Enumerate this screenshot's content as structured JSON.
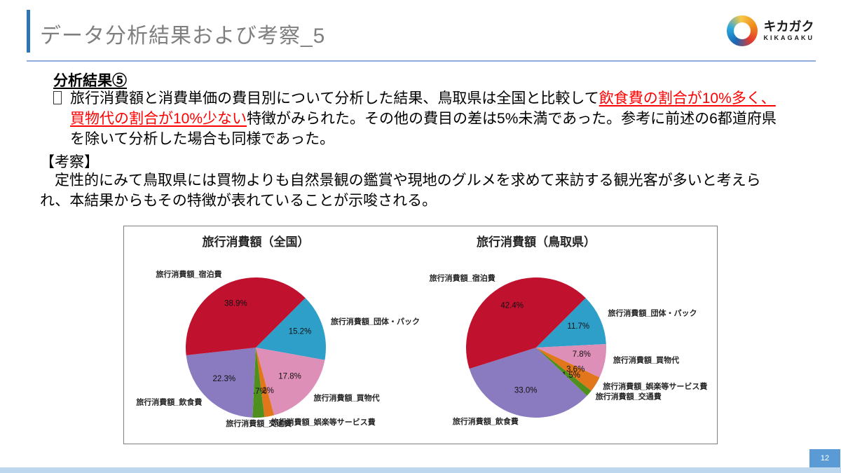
{
  "header": {
    "title": "データ分析結果および考察_5",
    "logo": {
      "brand": "キカガク",
      "sub": "KIKAGAKU"
    }
  },
  "body": {
    "heading": "分析結果⑤",
    "bullet_icon": "empty-checkbox-glyph",
    "analysis": {
      "before": "旅行消費額と消費単価の費目別について分析した結果、鳥取県は全国と比較して",
      "highlight": "飲食費の割合が10%多く、買物代の割合が10%少ない",
      "after": "特徴がみられた。その他の費目の差は5%未満であった。参考に前述の6都道府県を除いて分析した場合も同様であった。"
    },
    "discussion_label": "【考察】",
    "discussion": "　定性的にみて鳥取県には買物よりも自然景観の鑑賞や現地のグルメを求めて来訪する観光客が多いと考えられ、本結果からもその特徴が表れていることが示唆される。"
  },
  "footer": {
    "page_number": "12"
  },
  "colors": {
    "title_gray": "#7F7F7F",
    "accent_bar_blue": "#2E75B6",
    "header_rule_blue": "#8FAADC",
    "highlight_red": "#FF0000",
    "footer_strip_blue": "#BDD7EE",
    "page_box_blue": "#5B9BD5"
  },
  "chart_data": [
    {
      "type": "pie",
      "title": "旅行消費額（全国）",
      "start_angle_deg_clockwise_from_north": 45,
      "direction": "clockwise",
      "slices": [
        {
          "label": "旅行消費額_団体・パック",
          "value": 15.2,
          "pct_label": "15.2%",
          "color": "#2E9FC9"
        },
        {
          "label": "旅行消費額_買物代",
          "value": 17.8,
          "pct_label": "17.8%",
          "color": "#DE8FB8"
        },
        {
          "label": "旅行消費額_娯楽等サービス費",
          "value": 2.2,
          "pct_label": "2.2%",
          "color": "#E2761B"
        },
        {
          "label": "旅行消費額_交通費",
          "value": 2.7,
          "pct_label": "2.7%",
          "color": "#4F8F1E"
        },
        {
          "label": "旅行消費額_飲食費",
          "value": 22.3,
          "pct_label": "22.3%",
          "color": "#8A7ABF"
        },
        {
          "label": "旅行消費額_宿泊費",
          "value": 38.9,
          "pct_label": "38.9%",
          "color": "#C0112F"
        }
      ]
    },
    {
      "type": "pie",
      "title": "旅行消費額（鳥取県）",
      "start_angle_deg_clockwise_from_north": 45,
      "direction": "clockwise",
      "slices": [
        {
          "label": "旅行消費額_団体・パック",
          "value": 11.7,
          "pct_label": "11.7%",
          "color": "#2E9FC9"
        },
        {
          "label": "旅行消費額_買物代",
          "value": 7.8,
          "pct_label": "7.8%",
          "color": "#DE8FB8"
        },
        {
          "label": "旅行消費額_娯楽等サービス費",
          "value": 3.6,
          "pct_label": "3.6%",
          "color": "#E2761B"
        },
        {
          "label": "旅行消費額_交通費",
          "value": 1.5,
          "pct_label": "1.5%",
          "color": "#4F8F1E"
        },
        {
          "label": "旅行消費額_飲食費",
          "value": 33.0,
          "pct_label": "33.0%",
          "color": "#8A7ABF"
        },
        {
          "label": "旅行消費額_宿泊費",
          "value": 42.4,
          "pct_label": "42.4%",
          "color": "#C0112F"
        }
      ]
    }
  ]
}
